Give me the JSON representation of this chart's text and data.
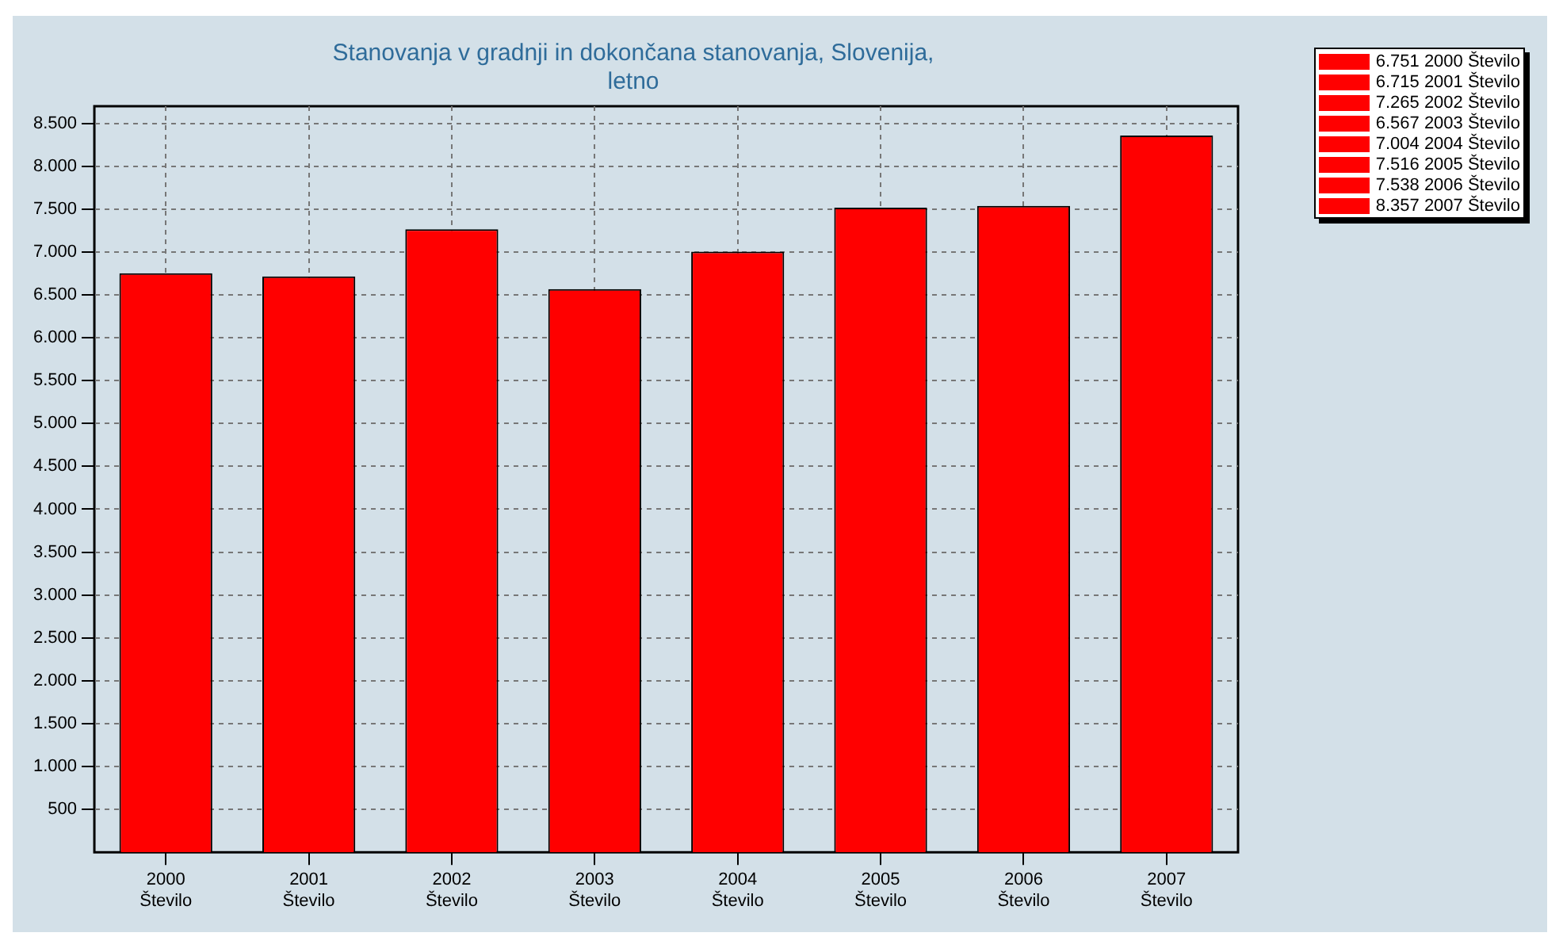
{
  "chart_data": {
    "type": "bar",
    "title": "Stanovanja v gradnji in dokončana stanovanja, Slovenija,\nletno",
    "categories": [
      "2000 Število",
      "2001 Število",
      "2002 Število",
      "2003 Število",
      "2004 Število",
      "2005 Število",
      "2006 Število",
      "2007 Število"
    ],
    "series": [
      {
        "name": "6.751 2000 Število",
        "color": "#ff0000",
        "values": [
          6751,
          null,
          null,
          null,
          null,
          null,
          null,
          null
        ]
      },
      {
        "name": "6.715 2001 Število",
        "color": "#ff0000",
        "values": [
          null,
          6715,
          null,
          null,
          null,
          null,
          null,
          null
        ]
      },
      {
        "name": "7.265 2002 Število",
        "color": "#ff0000",
        "values": [
          null,
          null,
          7265,
          null,
          null,
          null,
          null,
          null
        ]
      },
      {
        "name": "6.567 2003 Število",
        "color": "#ff0000",
        "values": [
          null,
          null,
          null,
          6567,
          null,
          null,
          null,
          null
        ]
      },
      {
        "name": "7.004 2004 Število",
        "color": "#ff0000",
        "values": [
          null,
          null,
          null,
          null,
          7004,
          null,
          null,
          null
        ]
      },
      {
        "name": "7.516 2005 Število",
        "color": "#ff0000",
        "values": [
          null,
          null,
          null,
          null,
          null,
          7516,
          null,
          null
        ]
      },
      {
        "name": "7.538 2006 Število",
        "color": "#ff0000",
        "values": [
          null,
          null,
          null,
          null,
          null,
          null,
          7538,
          null
        ]
      },
      {
        "name": "8.357 2007 Število",
        "color": "#ff0000",
        "values": [
          null,
          null,
          null,
          null,
          null,
          null,
          null,
          8357
        ]
      }
    ],
    "ylim": [
      0,
      8700
    ],
    "yticks": [
      {
        "value": 500,
        "label": "500"
      },
      {
        "value": 1000,
        "label": "1.000"
      },
      {
        "value": 1500,
        "label": "1.500"
      },
      {
        "value": 2000,
        "label": "2.000"
      },
      {
        "value": 2500,
        "label": "2.500"
      },
      {
        "value": 3000,
        "label": "3.000"
      },
      {
        "value": 3500,
        "label": "3.500"
      },
      {
        "value": 4000,
        "label": "4.000"
      },
      {
        "value": 4500,
        "label": "4.500"
      },
      {
        "value": 5000,
        "label": "5.000"
      },
      {
        "value": 5500,
        "label": "5.500"
      },
      {
        "value": 6000,
        "label": "6.000"
      },
      {
        "value": 6500,
        "label": "6.500"
      },
      {
        "value": 7000,
        "label": "7.000"
      },
      {
        "value": 7500,
        "label": "7.500"
      },
      {
        "value": 8000,
        "label": "8.000"
      },
      {
        "value": 8500,
        "label": "8.500"
      }
    ],
    "grid": true,
    "legend": "top right"
  }
}
